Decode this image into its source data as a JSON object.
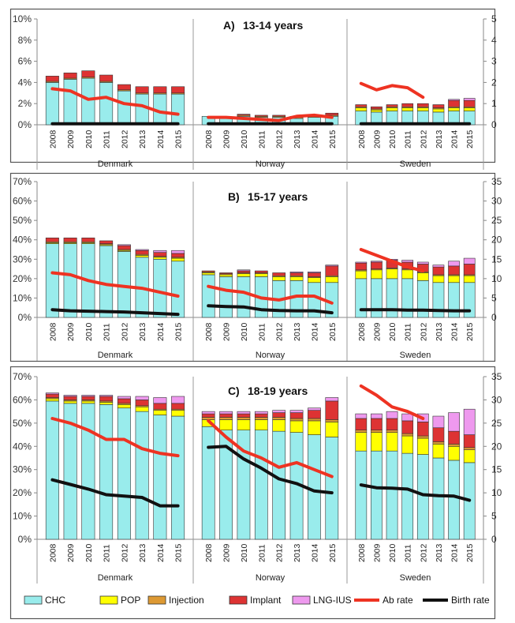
{
  "chart_data": {
    "type": "bar",
    "years": [
      "2008",
      "2009",
      "2010",
      "2011",
      "2012",
      "2013",
      "2014",
      "2015"
    ],
    "countries": [
      "Denmark",
      "Norway",
      "Sweden"
    ],
    "colors": {
      "CHC": "#99ecec",
      "POP": "#ffff00",
      "Injection": "#dd9933",
      "Implant": "#dd3333",
      "LNG-IUS": "#ee99ee",
      "Ab rate": "#ee3322",
      "Birth rate": "#111111"
    },
    "legend": [
      {
        "name": "CHC",
        "kind": "box"
      },
      {
        "name": "POP",
        "kind": "box"
      },
      {
        "name": "Injection",
        "kind": "box"
      },
      {
        "name": "Implant",
        "kind": "box"
      },
      {
        "name": "LNG-IUS",
        "kind": "box"
      },
      {
        "name": "Ab rate",
        "kind": "line"
      },
      {
        "name": "Birth rate",
        "kind": "line"
      }
    ],
    "panels": [
      {
        "letter": "A",
        "title": "13-14 years",
        "left_axis": {
          "min": 0,
          "max": 10,
          "step": 2,
          "ticks": [
            "0%",
            "2%",
            "4%",
            "6%",
            "8%",
            "10%"
          ]
        },
        "right_axis": {
          "min": 0,
          "max": 5,
          "step": 1,
          "ticks": [
            "0",
            "1",
            "2",
            "3",
            "4",
            "5"
          ]
        },
        "countries": [
          {
            "name": "Denmark",
            "stacks": [
              [
                4.0,
                0,
                0.1,
                0.5,
                0
              ],
              [
                4.3,
                0,
                0.1,
                0.5,
                0
              ],
              [
                4.4,
                0,
                0.1,
                0.6,
                0
              ],
              [
                4.0,
                0,
                0.1,
                0.6,
                0
              ],
              [
                3.2,
                0,
                0.1,
                0.5,
                0
              ],
              [
                2.9,
                0,
                0.1,
                0.6,
                0
              ],
              [
                2.9,
                0,
                0.1,
                0.6,
                0
              ],
              [
                2.9,
                0,
                0.1,
                0.6,
                0
              ]
            ],
            "ab_rate": [
              1.7,
              1.6,
              1.2,
              1.3,
              1.0,
              0.9,
              0.6,
              0.5
            ],
            "birth_rate": [
              0.05,
              0.05,
              0.05,
              0.05,
              0.05,
              0.05,
              0.05,
              0.05
            ]
          },
          {
            "name": "Norway",
            "stacks": [
              [
                0.8,
                0,
                0,
                0,
                0
              ],
              [
                0.7,
                0,
                0,
                0.05,
                0
              ],
              [
                0.8,
                0,
                0.1,
                0.1,
                0
              ],
              [
                0.7,
                0,
                0.1,
                0.1,
                0
              ],
              [
                0.7,
                0,
                0.1,
                0.1,
                0
              ],
              [
                0.6,
                0,
                0.1,
                0.1,
                0
              ],
              [
                0.7,
                0,
                0.1,
                0.1,
                0
              ],
              [
                0.8,
                0,
                0.1,
                0.2,
                0
              ]
            ],
            "ab_rate": [
              0.35,
              0.35,
              0.3,
              0.25,
              0.2,
              0.4,
              0.45,
              0.35
            ],
            "birth_rate": [
              0.05,
              0.05,
              0.05,
              0.05,
              0.05,
              0.05,
              0.05,
              0.05
            ]
          },
          {
            "name": "Sweden",
            "stacks": [
              [
                1.3,
                0.3,
                0.1,
                0.2,
                0
              ],
              [
                1.2,
                0.2,
                0.1,
                0.2,
                0
              ],
              [
                1.3,
                0.3,
                0.1,
                0.2,
                0
              ],
              [
                1.3,
                0.3,
                0.1,
                0.3,
                0
              ],
              [
                1.3,
                0.3,
                0.1,
                0.3,
                0
              ],
              [
                1.2,
                0.3,
                0.1,
                0.3,
                0
              ],
              [
                1.3,
                0.3,
                0.1,
                0.6,
                0.1
              ],
              [
                1.3,
                0.3,
                0.1,
                0.6,
                0.2
              ]
            ],
            "ab_rate": [
              1.95,
              1.65,
              1.85,
              1.75,
              1.3,
              null,
              null,
              null
            ],
            "birth_rate": [
              0.05,
              0.05,
              0.05,
              0.05,
              0.05,
              0.05,
              0.05,
              0.05
            ]
          }
        ]
      },
      {
        "letter": "B",
        "title": "15-17 years",
        "left_axis": {
          "min": 0,
          "max": 70,
          "step": 10,
          "ticks": [
            "0%",
            "10%",
            "20%",
            "30%",
            "40%",
            "50%",
            "60%",
            "70%"
          ]
        },
        "right_axis": {
          "min": 0,
          "max": 35,
          "step": 5,
          "ticks": [
            "0",
            "5",
            "10",
            "15",
            "20",
            "25",
            "30",
            "35"
          ]
        },
        "countries": [
          {
            "name": "Denmark",
            "stacks": [
              [
                38,
                0.5,
                0.5,
                2,
                0
              ],
              [
                38,
                0.5,
                0.5,
                2,
                0
              ],
              [
                38,
                0.5,
                0.5,
                2,
                0
              ],
              [
                37,
                0.5,
                0.5,
                1.5,
                0
              ],
              [
                34,
                0.5,
                0.5,
                2,
                0.5
              ],
              [
                31,
                1,
                0.5,
                2,
                0.5
              ],
              [
                30,
                1,
                0.5,
                2,
                1
              ],
              [
                29,
                1.5,
                0.5,
                2,
                1.5
              ]
            ],
            "ab_rate": [
              11.5,
              11,
              9.5,
              8.5,
              8,
              7.5,
              6.5,
              5.5
            ],
            "birth_rate": [
              2.0,
              1.7,
              1.6,
              1.5,
              1.4,
              1.2,
              1.0,
              0.8
            ]
          },
          {
            "name": "Norway",
            "stacks": [
              [
                22,
                1,
                0.5,
                0.5,
                0
              ],
              [
                21,
                1,
                0.5,
                0.5,
                0
              ],
              [
                21,
                1.5,
                0.5,
                1,
                0.5
              ],
              [
                21,
                1.5,
                0.5,
                1,
                0
              ],
              [
                19,
                2,
                0.5,
                1.5,
                0
              ],
              [
                19,
                2,
                0.5,
                1.5,
                0.5
              ],
              [
                18,
                2.5,
                0.5,
                2,
                0.5
              ],
              [
                18,
                3,
                0.5,
                5,
                0.5
              ]
            ],
            "ab_rate": [
              8,
              7,
              6.5,
              5,
              4.5,
              5.5,
              5.5,
              3.7
            ],
            "birth_rate": [
              3.0,
              2.8,
              2.7,
              2.0,
              1.8,
              1.7,
              1.7,
              1.2
            ]
          },
          {
            "name": "Sweden",
            "stacks": [
              [
                20,
                4,
                0.5,
                3.5,
                0.5
              ],
              [
                20,
                4.5,
                0.5,
                3.5,
                0.5
              ],
              [
                20,
                5,
                0.5,
                4,
                0.5
              ],
              [
                20,
                4.5,
                0.5,
                3.5,
                1
              ],
              [
                19,
                4,
                0.5,
                4,
                1
              ],
              [
                18,
                3.5,
                0.5,
                4,
                1
              ],
              [
                18,
                3.5,
                0.5,
                4.5,
                2.5
              ],
              [
                18,
                3.5,
                0.5,
                5.5,
                3
              ]
            ],
            "ab_rate": [
              17.5,
              16,
              14.5,
              13,
              12,
              null,
              null,
              null
            ],
            "birth_rate": [
              2.0,
              2.0,
              2.0,
              1.9,
              1.9,
              1.8,
              1.7,
              1.7
            ]
          }
        ]
      },
      {
        "letter": "C",
        "title": "18-19 years",
        "left_axis": {
          "min": 0,
          "max": 70,
          "step": 10,
          "ticks": [
            "0%",
            "10%",
            "20%",
            "30%",
            "40%",
            "50%",
            "60%",
            "70%"
          ]
        },
        "right_axis": {
          "min": 0,
          "max": 35,
          "step": 5,
          "ticks": [
            "0",
            "5",
            "10",
            "15",
            "20",
            "25",
            "30",
            "35"
          ]
        },
        "countries": [
          {
            "name": "Denmark",
            "stacks": [
              [
                59.5,
                1,
                0.5,
                1.5,
                0.5
              ],
              [
                58.5,
                1,
                0.5,
                1.5,
                0.5
              ],
              [
                58.5,
                1,
                0.5,
                1.5,
                0.5
              ],
              [
                58,
                1,
                0.5,
                2,
                0.5
              ],
              [
                56.5,
                1.5,
                0.5,
                2,
                1
              ],
              [
                55,
                2,
                0.5,
                2.5,
                1.5
              ],
              [
                53.5,
                2,
                0.5,
                2.5,
                2.5
              ],
              [
                53,
                2.5,
                0.5,
                2.5,
                3
              ]
            ],
            "ab_rate": [
              26,
              25,
              23.5,
              21.5,
              21.5,
              19.5,
              18.5,
              18
            ],
            "birth_rate": [
              12.8,
              11.8,
              10.8,
              9.6,
              9.3,
              9.0,
              7.2,
              7.2
            ]
          },
          {
            "name": "Norway",
            "stacks": [
              [
                48.5,
                3,
                1,
                1.5,
                1
              ],
              [
                47,
                4.5,
                1,
                1.5,
                1
              ],
              [
                47,
                4.5,
                1,
                1.5,
                1
              ],
              [
                47,
                4.5,
                1,
                1.5,
                1
              ],
              [
                46.5,
                5,
                1,
                2,
                1
              ],
              [
                46,
                5,
                1,
                2.5,
                1
              ],
              [
                45,
                6,
                1,
                3.5,
                1
              ],
              [
                44,
                6.5,
                1,
                8,
                1.5
              ]
            ],
            "ab_rate": [
              25.5,
              22,
              19,
              17.5,
              15.5,
              16.5,
              15,
              13.5
            ],
            "birth_rate": [
              19.8,
              20,
              17.3,
              15.3,
              13,
              12,
              10.4,
              10
            ]
          },
          {
            "name": "Sweden",
            "stacks": [
              [
                38,
                8,
                1,
                5,
                2
              ],
              [
                38,
                8,
                1,
                5,
                2
              ],
              [
                38,
                8,
                1,
                5,
                3
              ],
              [
                37,
                7.5,
                1,
                5.5,
                3
              ],
              [
                36.5,
                7,
                1,
                6,
                3.5
              ],
              [
                35,
                6,
                1,
                6,
                5
              ],
              [
                34,
                6,
                1,
                5.5,
                8
              ],
              [
                33,
                5.5,
                1,
                5.5,
                11
              ]
            ],
            "ab_rate": [
              33,
              31,
              28.5,
              27.5,
              26,
              null,
              null,
              null
            ],
            "birth_rate": [
              11.7,
              11.1,
              11.0,
              10.8,
              9.6,
              9.4,
              9.3,
              8.4
            ]
          }
        ]
      }
    ]
  },
  "labels": {
    "panel_a_letter": "A",
    "panel_a_title": "13-14 years",
    "panel_b_letter": "B",
    "panel_b_title": "15-17 years",
    "panel_c_letter": "C",
    "panel_c_title": "18-19 years"
  }
}
